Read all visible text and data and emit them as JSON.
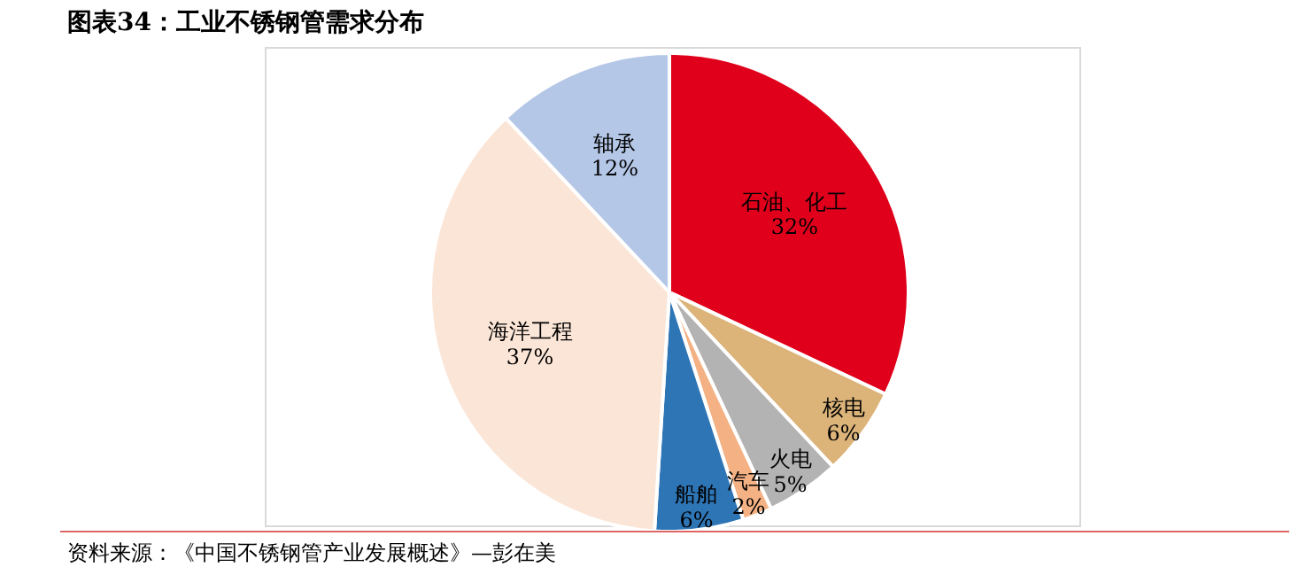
{
  "chart_data": {
    "type": "pie",
    "title": "图表34：工业不锈钢管需求分布",
    "categories": [
      "石油、化工",
      "核电",
      "火电",
      "汽车",
      "船舶",
      "海洋工程",
      "轴承"
    ],
    "values": [
      32,
      6,
      5,
      2,
      6,
      37,
      12
    ],
    "value_labels": [
      "32%",
      "6%",
      "5%",
      "2%",
      "6%",
      "37%",
      "12%"
    ],
    "colors": [
      "#e0001b",
      "#dcb47a",
      "#b3b3b3",
      "#f4b183",
      "#2e75b6",
      "#fbe5d6",
      "#b4c7e7"
    ],
    "annotations": [
      "资料来源：《中国不锈钢管产业发展概述》—彭在美"
    ]
  }
}
